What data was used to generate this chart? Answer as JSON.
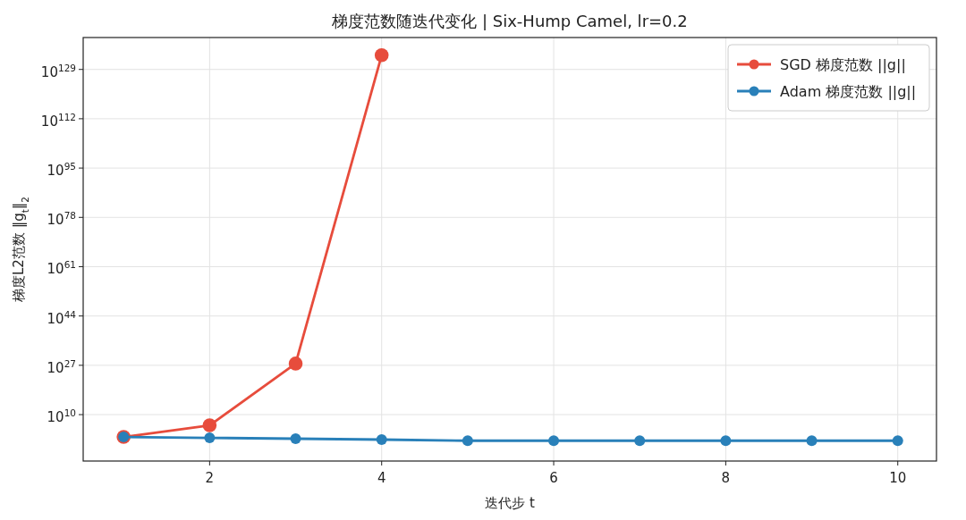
{
  "chart_data": {
    "type": "line",
    "title": "梯度范数随迭代变化 | Six-Hump Camel, lr=0.2",
    "xlabel": "迭代步 t",
    "ylabel": "梯度L2范数 ‖g$_{t}$‖$_{2}$",
    "x": [
      1,
      2,
      3,
      4,
      5,
      6,
      7,
      8,
      9,
      10
    ],
    "series": [
      {
        "name": "SGD 梯度范数 ||g||",
        "color": "#e74c3c",
        "x": [
          1,
          2,
          3,
          4
        ],
        "values": [
          200,
          2000000.0,
          4e+27,
          8e+133
        ]
      },
      {
        "name": "Adam 梯度范数 ||g||",
        "color": "#2980b9",
        "values": [
          200,
          100,
          50,
          25,
          10,
          10,
          10,
          10,
          10,
          10
        ]
      }
    ],
    "log": "y",
    "xlim": [
      0.53,
      10.45
    ],
    "xticks": [
      2,
      4,
      6,
      8,
      10
    ],
    "ylim": [
      1e-06,
      1e+140
    ],
    "yticks": [
      {
        "value": 10000000000.0,
        "label": "10$^{10}$"
      },
      {
        "value": 1e+27,
        "label": "10$^{27}$"
      },
      {
        "value": 1e+44,
        "label": "10$^{44}$"
      },
      {
        "value": 1e+61,
        "label": "10$^{61}$"
      },
      {
        "value": 1e+78,
        "label": "10$^{78}$"
      },
      {
        "value": 1e+95,
        "label": "10$^{95}$"
      },
      {
        "value": 1e+112,
        "label": "10$^{112}$"
      },
      {
        "value": 1e+129,
        "label": "10$^{129}$"
      }
    ],
    "grid": true,
    "legend": "top right",
    "marker": "circle",
    "line_style": "solid"
  }
}
